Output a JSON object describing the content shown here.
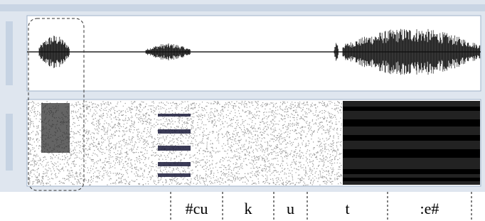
{
  "segments": [
    "#cu",
    "k",
    "u",
    "t",
    ":e#"
  ]
}
